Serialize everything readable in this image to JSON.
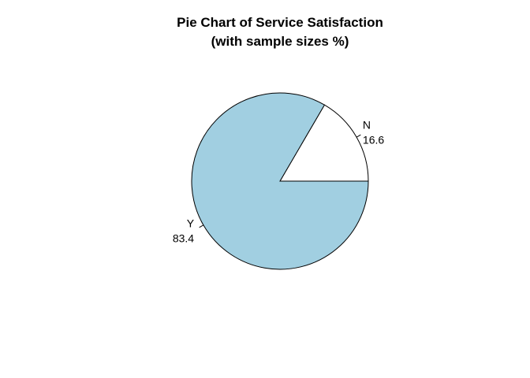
{
  "chart_data": {
    "type": "pie",
    "title": "Pie Chart of Service Satisfaction",
    "subtitle": "(with sample sizes %)",
    "slices": [
      {
        "label": "N",
        "value": 16.6,
        "value_label": "16.6",
        "color": "#ffffff"
      },
      {
        "label": "Y",
        "value": 83.4,
        "value_label": "83.4",
        "color": "#a1cfe1"
      }
    ],
    "start_angle_deg": 0,
    "direction": "counterclockwise",
    "outline_color": "#000000"
  }
}
